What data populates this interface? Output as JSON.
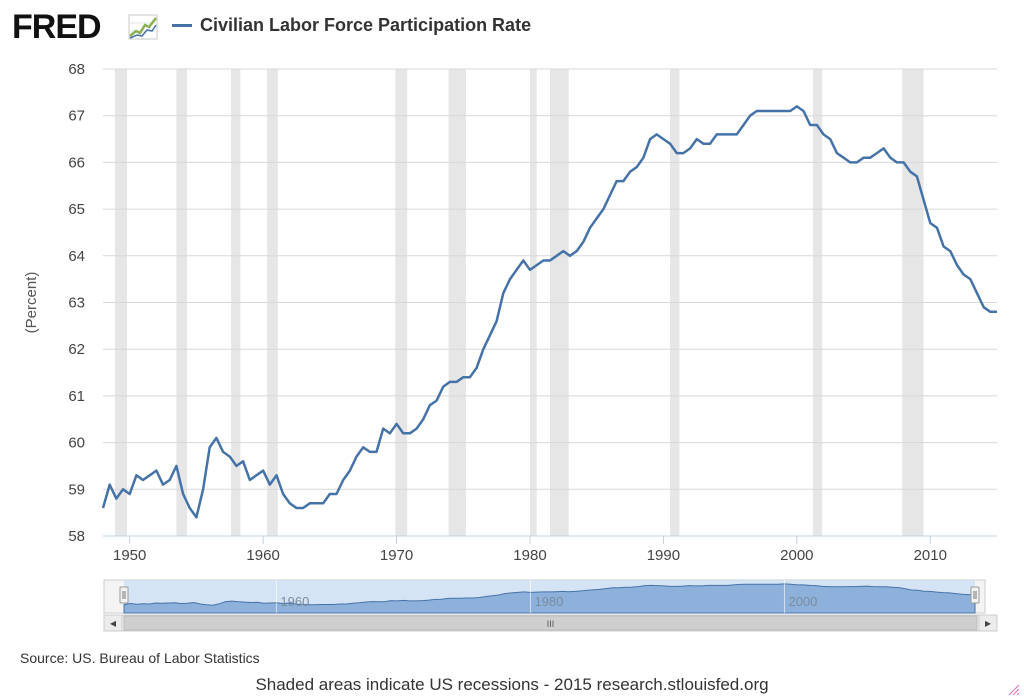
{
  "header": {
    "logo_text": "FRED",
    "logo_icon": "line-chart-icon",
    "legend_label": "Civilian Labor Force Participation Rate",
    "series_color": "#4572a7"
  },
  "footer": {
    "source": "Source: US. Bureau of Labor Statistics",
    "note": "Shaded areas indicate US recessions - 2015 research.stlouisfed.org"
  },
  "navigator": {
    "tick_labels": [
      "1960",
      "1980",
      "2000"
    ],
    "scrollbar_grip": "III",
    "left_arrow": "◂",
    "right_arrow": "▸"
  },
  "chart_data": {
    "type": "line",
    "title": "Civilian Labor Force Participation Rate",
    "xlabel": "",
    "ylabel": "(Percent)",
    "xlim": [
      1948,
      2015
    ],
    "ylim": [
      58,
      68
    ],
    "xticks": [
      1950,
      1960,
      1970,
      1980,
      1990,
      2000,
      2010
    ],
    "yticks": [
      58,
      59,
      60,
      61,
      62,
      63,
      64,
      65,
      66,
      67,
      68
    ],
    "grid": true,
    "legend": "top-left",
    "series": [
      {
        "name": "Civilian Labor Force Participation Rate",
        "color": "#4572a7",
        "x": [
          1948.0,
          1948.5,
          1949.0,
          1949.5,
          1950.0,
          1950.5,
          1951.0,
          1951.5,
          1952.0,
          1952.5,
          1953.0,
          1953.5,
          1954.0,
          1954.5,
          1955.0,
          1955.5,
          1956.0,
          1956.5,
          1957.0,
          1957.5,
          1958.0,
          1958.5,
          1959.0,
          1959.5,
          1960.0,
          1960.5,
          1961.0,
          1961.5,
          1962.0,
          1962.5,
          1963.0,
          1963.5,
          1964.0,
          1964.5,
          1965.0,
          1965.5,
          1966.0,
          1966.5,
          1967.0,
          1967.5,
          1968.0,
          1968.5,
          1969.0,
          1969.5,
          1970.0,
          1970.5,
          1971.0,
          1971.5,
          1972.0,
          1972.5,
          1973.0,
          1973.5,
          1974.0,
          1974.5,
          1975.0,
          1975.5,
          1976.0,
          1976.5,
          1977.0,
          1977.5,
          1978.0,
          1978.5,
          1979.0,
          1979.5,
          1980.0,
          1980.5,
          1981.0,
          1981.5,
          1982.0,
          1982.5,
          1983.0,
          1983.5,
          1984.0,
          1984.5,
          1985.0,
          1985.5,
          1986.0,
          1986.5,
          1987.0,
          1987.5,
          1988.0,
          1988.5,
          1989.0,
          1989.5,
          1990.0,
          1990.5,
          1991.0,
          1991.5,
          1992.0,
          1992.5,
          1993.0,
          1993.5,
          1994.0,
          1994.5,
          1995.0,
          1995.5,
          1996.0,
          1996.5,
          1997.0,
          1997.5,
          1998.0,
          1998.5,
          1999.0,
          1999.5,
          2000.0,
          2000.5,
          2001.0,
          2001.5,
          2002.0,
          2002.5,
          2003.0,
          2003.5,
          2004.0,
          2004.5,
          2005.0,
          2005.5,
          2006.0,
          2006.5,
          2007.0,
          2007.5,
          2008.0,
          2008.5,
          2009.0,
          2009.5,
          2010.0,
          2010.5,
          2011.0,
          2011.5,
          2012.0,
          2012.5,
          2013.0,
          2013.5,
          2014.0,
          2014.5,
          2015.0
        ],
        "values": [
          58.6,
          59.1,
          58.8,
          59.0,
          58.9,
          59.3,
          59.2,
          59.3,
          59.4,
          59.1,
          59.2,
          59.5,
          58.9,
          58.6,
          58.4,
          59.0,
          59.9,
          60.1,
          59.8,
          59.7,
          59.5,
          59.6,
          59.2,
          59.3,
          59.4,
          59.1,
          59.3,
          58.9,
          58.7,
          58.6,
          58.6,
          58.7,
          58.7,
          58.7,
          58.9,
          58.9,
          59.2,
          59.4,
          59.7,
          59.9,
          59.8,
          59.8,
          60.3,
          60.2,
          60.4,
          60.2,
          60.2,
          60.3,
          60.5,
          60.8,
          60.9,
          61.2,
          61.3,
          61.3,
          61.4,
          61.4,
          61.6,
          62.0,
          62.3,
          62.6,
          63.2,
          63.5,
          63.7,
          63.9,
          63.7,
          63.8,
          63.9,
          63.9,
          64.0,
          64.1,
          64.0,
          64.1,
          64.3,
          64.6,
          64.8,
          65.0,
          65.3,
          65.6,
          65.6,
          65.8,
          65.9,
          66.1,
          66.5,
          66.6,
          66.5,
          66.4,
          66.2,
          66.2,
          66.3,
          66.5,
          66.4,
          66.4,
          66.6,
          66.6,
          66.6,
          66.6,
          66.8,
          67.0,
          67.1,
          67.1,
          67.1,
          67.1,
          67.1,
          67.1,
          67.2,
          67.1,
          66.8,
          66.8,
          66.6,
          66.5,
          66.2,
          66.1,
          66.0,
          66.0,
          66.1,
          66.1,
          66.2,
          66.3,
          66.1,
          66.0,
          66.0,
          65.8,
          65.7,
          65.2,
          64.7,
          64.6,
          64.2,
          64.1,
          63.8,
          63.6,
          63.5,
          63.2,
          62.9,
          62.8,
          62.8
        ]
      }
    ],
    "recessions": [
      [
        1948.9,
        1949.8
      ],
      [
        1953.5,
        1954.3
      ],
      [
        1957.6,
        1958.3
      ],
      [
        1960.3,
        1961.1
      ],
      [
        1969.9,
        1970.8
      ],
      [
        1973.9,
        1975.2
      ],
      [
        1980.0,
        1980.5
      ],
      [
        1981.5,
        1982.9
      ],
      [
        1990.5,
        1991.2
      ],
      [
        2001.2,
        2001.9
      ],
      [
        2007.9,
        2009.5
      ]
    ]
  }
}
